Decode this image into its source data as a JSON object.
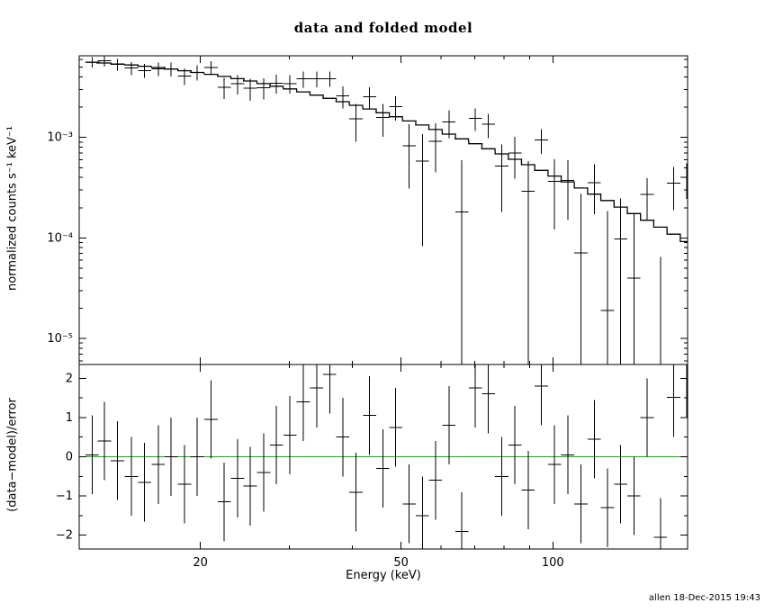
{
  "title": "data and folded model",
  "footer": "allen 18-Dec-2015 19:43",
  "colors": {
    "foreground": "#000000",
    "background": "#ffffff",
    "zero_line": "#00bb00"
  },
  "chart_data": [
    {
      "type": "scatter",
      "panel": "spectrum",
      "title": "data and folded model",
      "ylabel": "normalized counts s⁻¹ keV⁻¹",
      "xscale": "log",
      "yscale": "log",
      "xlim": [
        11.5,
        185
      ],
      "ylim": [
        5.5e-06,
        0.0065
      ],
      "grid": false,
      "legend": "none",
      "xticks": {
        "major": [
          20,
          50,
          100
        ],
        "labels": [
          "20",
          "50",
          "100"
        ],
        "minor": [
          30,
          40,
          60,
          70,
          80,
          90
        ]
      },
      "yticks": {
        "major": [
          1e-05,
          0.0001,
          0.001
        ],
        "labels": [
          "10⁻⁵",
          "10⁻⁴",
          "10⁻³"
        ]
      },
      "bins": {
        "log_halfwidth": 0.01312
      },
      "energy": [
        12.2,
        12.9,
        13.7,
        14.6,
        15.5,
        16.5,
        17.5,
        18.6,
        19.7,
        21.0,
        22.3,
        23.7,
        25.1,
        26.7,
        28.3,
        30.1,
        32.0,
        34.0,
        36.1,
        38.3,
        40.7,
        43.3,
        46.0,
        48.8,
        51.9,
        55.1,
        58.5,
        62.2,
        66.0,
        70.2,
        74.5,
        79.2,
        84.1,
        89.3,
        94.9,
        100.8,
        107.0,
        113.7,
        120.8,
        128.3,
        136.3,
        144.8,
        153.8,
        163.4,
        173.6,
        184.4
      ],
      "rate": [
        0.00563,
        0.00579,
        0.00532,
        0.00491,
        0.00464,
        0.00482,
        0.0048,
        0.00409,
        0.00444,
        0.00498,
        0.00317,
        0.00343,
        0.00308,
        0.00314,
        0.00346,
        0.00344,
        0.00383,
        0.00384,
        0.00385,
        0.00259,
        0.00153,
        0.00255,
        0.00159,
        0.00202,
        0.00083,
        0.00058,
        0.00092,
        0.00143,
        0.000181,
        0.00155,
        0.00135,
        0.000518,
        0.000701,
        0.000291,
        0.000948,
        0.000364,
        0.000372,
        7.1e-05,
        0.000356,
        1.9e-05,
        9.8e-05,
        4e-05,
        0.000272,
        5e-06,
        0.00035,
        0.0004
      ],
      "rate_err": [
        0.00067,
        0.000694,
        0.000706,
        0.000727,
        0.000737,
        0.00075,
        0.000758,
        0.000762,
        0.000768,
        0.000769,
        0.000765,
        0.000762,
        0.000756,
        0.000746,
        0.000736,
        0.00072,
        0.000704,
        0.000686,
        0.000666,
        0.000647,
        0.000623,
        0.000599,
        0.000574,
        0.000549,
        0.000521,
        0.000497,
        0.000469,
        0.000442,
        0.000414,
        0.000388,
        0.000362,
        0.000337,
        0.000312,
        0.000288,
        0.000265,
        0.000243,
        0.000222,
        0.000203,
        0.000184,
        0.000167,
        0.00015,
        0.000135,
        0.000122,
        6e-05,
        0.00016,
        0.000155
      ],
      "model": [
        0.0056,
        0.00551,
        0.00539,
        0.00527,
        0.00512,
        0.00497,
        0.0048,
        0.00462,
        0.00444,
        0.00425,
        0.00405,
        0.00385,
        0.00365,
        0.00344,
        0.00324,
        0.00304,
        0.00284,
        0.00264,
        0.00245,
        0.00227,
        0.00209,
        0.00192,
        0.00176,
        0.00161,
        0.00146,
        0.00133,
        0.0012,
        0.00108,
        0.000968,
        0.000866,
        0.000772,
        0.000686,
        0.000607,
        0.000536,
        0.000471,
        0.000413,
        0.000361,
        0.000314,
        0.000273,
        0.000236,
        0.000203,
        0.000175,
        0.00015,
        0.000128,
        0.000109,
        9.21e-05
      ]
    },
    {
      "type": "scatter",
      "panel": "residuals",
      "ylabel": "(data−model)/error",
      "xlabel": "Energy (keV)",
      "ylim": [
        -2.35,
        2.35
      ],
      "grid": false,
      "zero_line": true,
      "residual_err": 1,
      "yticks": {
        "major": [
          -2,
          -1,
          0,
          1,
          2
        ],
        "labels": [
          "−2",
          "−1",
          "0",
          "1",
          "2"
        ],
        "minor": [
          -1.5,
          -0.5,
          0.5,
          1.5
        ]
      },
      "residuals": [
        0.05,
        0.4,
        -0.1,
        -0.5,
        -0.65,
        -0.2,
        0.0,
        -0.7,
        0.0,
        0.95,
        -1.15,
        -0.55,
        -0.75,
        -0.4,
        0.3,
        0.55,
        1.4,
        1.75,
        2.1,
        0.5,
        -0.9,
        1.05,
        -0.3,
        0.75,
        -1.2,
        -1.5,
        -0.6,
        0.8,
        -1.9,
        1.75,
        1.6,
        -0.5,
        0.3,
        -0.85,
        1.8,
        -0.2,
        0.05,
        -1.2,
        0.45,
        -1.3,
        -0.7,
        -1.0,
        1.0,
        -2.05,
        1.51,
        1.99
      ]
    }
  ]
}
